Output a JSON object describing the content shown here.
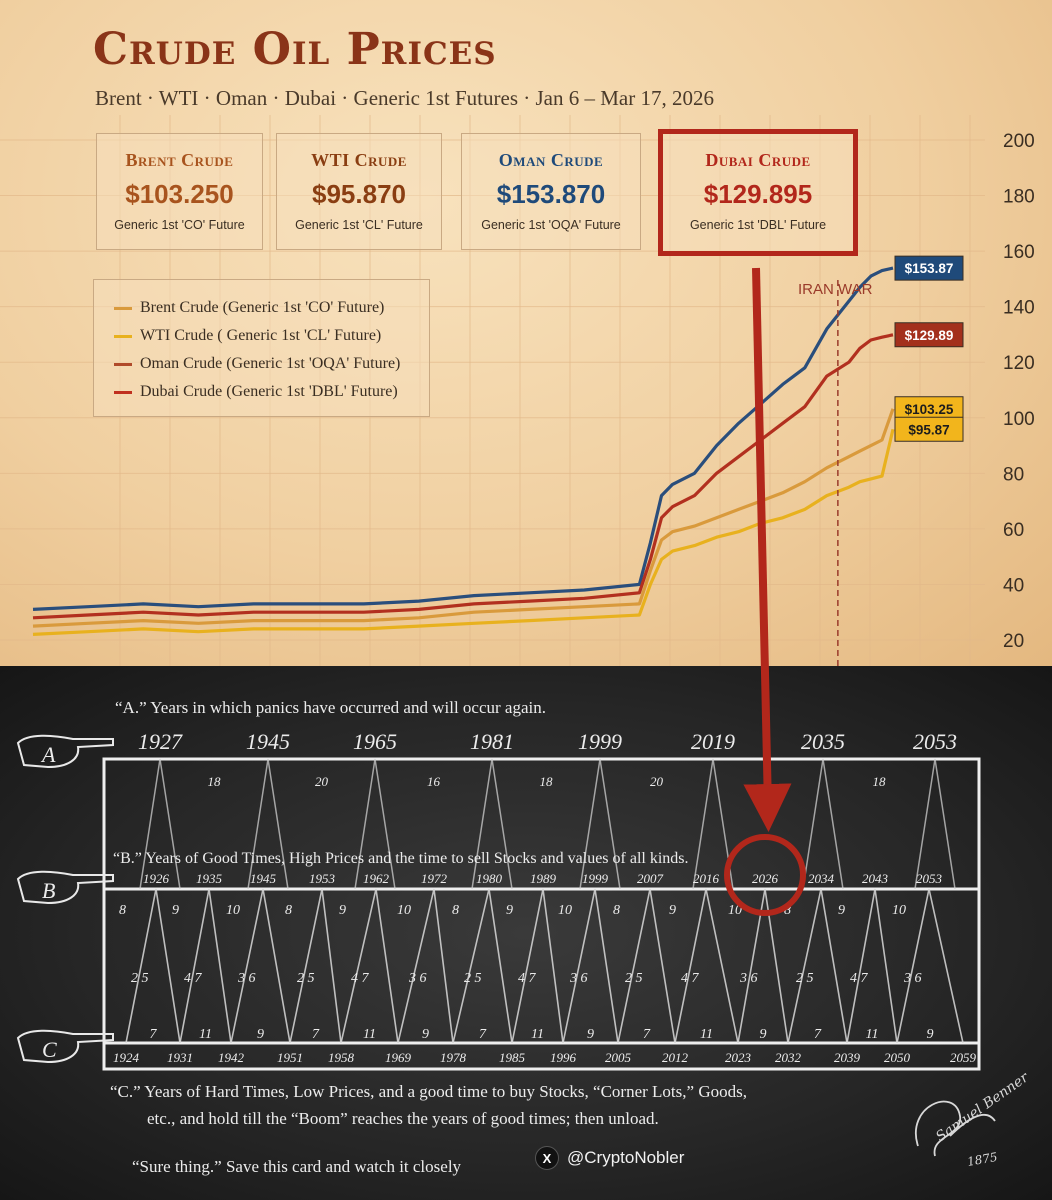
{
  "title": "Crude Oil Prices",
  "subtitle": "Brent · WTI · Oman · Dubai · Generic 1st Futures · Jan 6 – Mar 17, 2026",
  "cards": [
    {
      "name": "Brent Crude",
      "value": "$103.250",
      "sub": "Generic 1st 'CO' Future",
      "color": "#a8541e"
    },
    {
      "name": "WTI Crude",
      "value": "$95.870",
      "sub": "Generic 1st 'CL' Future",
      "color": "#8a3e12"
    },
    {
      "name": "Oman Crude",
      "value": "$153.870",
      "sub": "Generic 1st 'OQA' Future",
      "color": "#1f4a7a"
    },
    {
      "name": "Dubai Crude",
      "value": "$129.895",
      "sub": "Generic 1st 'DBL' Future",
      "color": "#b2271b"
    }
  ],
  "legend": [
    {
      "label": "Brent Crude (Generic 1st 'CO' Future)",
      "color": "#d99a3c"
    },
    {
      "label": "WTI Crude ( Generic 1st 'CL' Future)",
      "color": "#e8b11e"
    },
    {
      "label": "Oman Crude (Generic 1st 'OQA' Future)",
      "color": "#b04a2a"
    },
    {
      "label": "Dubai Crude (Generic 1st 'DBL' Future)",
      "color": "#c0301f"
    }
  ],
  "chart_data": {
    "type": "line",
    "x": [
      0,
      5,
      10,
      15,
      20,
      25,
      30,
      35,
      40,
      45,
      50,
      55,
      56,
      57,
      58,
      60,
      62,
      64,
      66,
      68,
      70,
      72,
      74,
      75,
      76,
      77,
      78
    ],
    "ylim": [
      15,
      205
    ],
    "yticks": [
      20,
      40,
      60,
      80,
      100,
      120,
      140,
      160,
      180,
      200
    ],
    "annotation": "IRAN WAR",
    "series": [
      {
        "name": "Oman Crude",
        "color": "#2a4e7c",
        "values": [
          31,
          32,
          33,
          32,
          33,
          33,
          33,
          34,
          36,
          37,
          38,
          40,
          55,
          72,
          76,
          80,
          90,
          98,
          105,
          112,
          118,
          132,
          142,
          147,
          151,
          153,
          153.87
        ],
        "label": "$153.87",
        "label_bg": "#1f4a7a",
        "label_fg": "#ffffff"
      },
      {
        "name": "Dubai Crude",
        "color": "#b2301f",
        "values": [
          28,
          29,
          30,
          29,
          30,
          30,
          30,
          31,
          33,
          34,
          35,
          37,
          49,
          64,
          68,
          72,
          80,
          86,
          92,
          98,
          104,
          115,
          120,
          125,
          128,
          129,
          129.89
        ],
        "label": "$129.89",
        "label_bg": "#a3301c",
        "label_fg": "#ffffff"
      },
      {
        "name": "Brent Crude",
        "color": "#d99a3c",
        "values": [
          25,
          26,
          27,
          26,
          27,
          27,
          27,
          28,
          30,
          31,
          32,
          33,
          45,
          56,
          59,
          61,
          64,
          67,
          70,
          73,
          77,
          82,
          86,
          88,
          90,
          92,
          103.25
        ],
        "label": "$103.25",
        "label_bg": "#f2b51c",
        "label_fg": "#1d1d1d"
      },
      {
        "name": "WTI Crude",
        "color": "#e8b11e",
        "values": [
          22,
          23,
          24,
          23,
          24,
          24,
          24,
          25,
          26,
          27,
          28,
          29,
          40,
          49,
          52,
          54,
          57,
          59,
          62,
          64,
          67,
          72,
          75,
          77,
          78,
          79,
          95.87
        ],
        "label": "$95.87",
        "label_bg": "#f2b51c",
        "label_fg": "#1d1d1d"
      }
    ]
  },
  "card_bottom": {
    "line_a": "“A.” Years in which panics have occurred and will occur again.",
    "line_b": "“B.” Years of Good Times, High Prices and the time to sell Stocks and values of all kinds.",
    "line_c1": "“C.”   Years of Hard Times, Low Prices, and a good time to buy Stocks, “Corner Lots,” Goods,",
    "line_c2": "etc., and hold till  the “Boom” reaches the years of good times; then unload.",
    "line_d": "“Sure thing.” Save this card and watch it closely",
    "row_a_letter": "A",
    "row_b_letter": "B",
    "row_c_letter": "C",
    "years_a": [
      "1927",
      "1945",
      "1965",
      "1981",
      "1999",
      "2019",
      "2035",
      "2053"
    ],
    "gaps_a": [
      "18",
      "20",
      "16",
      "18",
      "20",
      "",
      "18"
    ],
    "years_b": [
      "1926",
      "1935",
      "1945",
      "1953",
      "1962",
      "1972",
      "1980",
      "1989",
      "1999",
      "2007",
      "2016",
      "2026",
      "2034",
      "2043",
      "2053"
    ],
    "years_c": [
      "1924",
      "1931",
      "1942",
      "1951",
      "1958",
      "1969",
      "1978",
      "1985",
      "1996",
      "2005",
      "2012",
      "2023",
      "2032",
      "2039",
      "2050",
      "2059"
    ],
    "top_nums": [
      "8",
      "9",
      "10",
      "8",
      "9",
      "10",
      "8",
      "9",
      "10",
      "8",
      "9",
      "10",
      "8",
      "9",
      "10"
    ],
    "mid_nums": [
      "2 5",
      "4 7",
      "3 6",
      "2 5",
      "4 7",
      "3 6",
      "2 5",
      "4 7",
      "3 6",
      "2 5",
      "4 7",
      "3 6",
      "2 5",
      "4 7",
      "3 6"
    ],
    "bot_nums": [
      "7",
      "11",
      "9",
      "7",
      "11",
      "9",
      "7",
      "11",
      "9",
      "7",
      "11",
      "9",
      "7",
      "11",
      "9"
    ],
    "signature_name": "Samuel Benner",
    "signature_year": "1875"
  },
  "handle": "@CryptoNobler",
  "x_logo": "X"
}
